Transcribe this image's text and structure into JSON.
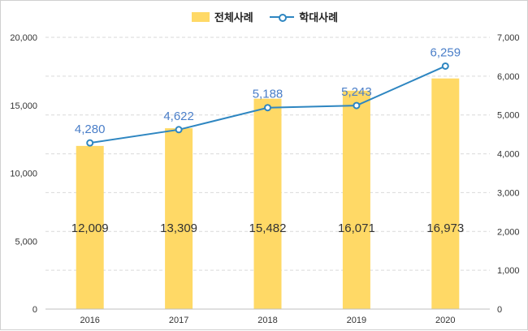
{
  "chart_data": {
    "type": "bar",
    "categories": [
      "2016",
      "2017",
      "2018",
      "2019",
      "2020"
    ],
    "series": [
      {
        "name": "전체사례",
        "type": "bar",
        "axis": "left",
        "color": "#FFD966",
        "values": [
          12009,
          13309,
          15482,
          16071,
          16973
        ],
        "labels": [
          "12,009",
          "13,309",
          "15,482",
          "16,071",
          "16,973"
        ]
      },
      {
        "name": "학대사례",
        "type": "line",
        "axis": "right",
        "color": "#2E86C1",
        "values": [
          4280,
          4622,
          5188,
          5243,
          6259
        ],
        "labels": [
          "4,280",
          "4,622",
          "5,188",
          "5,243",
          "6,259"
        ]
      }
    ],
    "y_left": {
      "min": 0,
      "max": 20000,
      "ticks": [
        "0",
        "5,000",
        "10,000",
        "15,000",
        "20,000"
      ]
    },
    "y_right": {
      "min": 0,
      "max": 7000,
      "ticks": [
        "0",
        "1,000",
        "2,000",
        "3,000",
        "4,000",
        "5,000",
        "6,000",
        "7,000"
      ]
    },
    "grid": true,
    "legend_position": "top-center",
    "title": "",
    "xlabel": "",
    "ylabel": ""
  }
}
